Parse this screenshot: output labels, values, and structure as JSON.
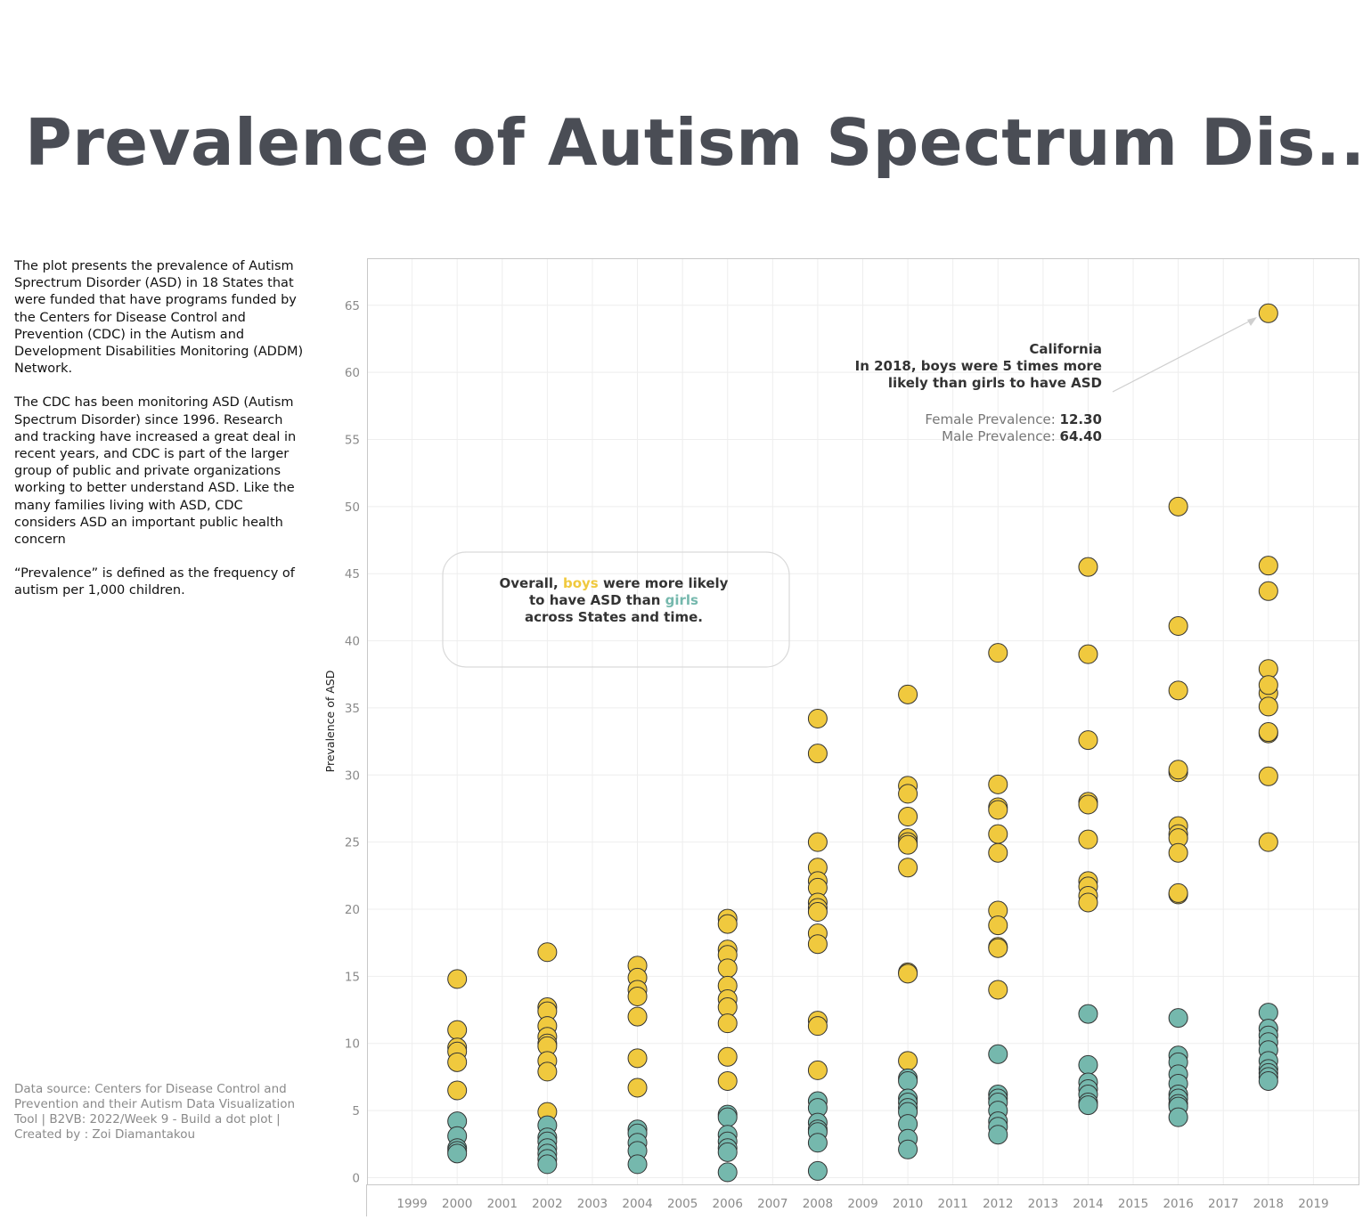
{
  "title": "Prevalence of Autism Spectrum Dis..",
  "description": [
    "The plot presents the prevalence of Autism Sprectrum Disorder (ASD)  in 18 States that were funded that have programs funded by the Centers for Disease Control and Prevention (CDC) in the Autism and Development Disabilities Monitoring (ADDM) Network.",
    "The CDC has been monitoring ASD (Autism Spectrum Disorder) since 1996. Research and tracking have increased a great deal in recent years, and CDC is part of the larger group of public and private organizations working to better understand ASD. Like the many families living with ASD, CDC considers ASD an important public health concern",
    "“Prevalence” is defined as the frequency of autism per 1,000 children."
  ],
  "source": "Data source: Centers for Disease Control and Prevention and their Autism Data Visualization Tool  | B2VB: 2022/Week 9 - Build a dot plot | Created by : Zoi Diamantakou",
  "annotation_ca": {
    "line1": "California",
    "line2": "In 2018, boys were 5 times more",
    "line3": "likely than girls to have ASD",
    "female_label": "Female Prevalence: ",
    "female_value": "12.30",
    "male_label": "Male Prevalence: ",
    "male_value": "64.40"
  },
  "annotation_overall": {
    "pre": "Overall, ",
    "boys": "boys",
    "mid": " were more likely",
    "line2a": "to have ASD than ",
    "girls": "girls",
    "line3": "across States and time."
  },
  "colors": {
    "boys": "#f0c93e",
    "girls": "#75b8ad",
    "title": "#4a4d55",
    "grid": "#eeeeee"
  },
  "chart_data": {
    "type": "scatter",
    "xlabel": "",
    "ylabel": "Prevalence of ASD",
    "xlim": [
      1998,
      2020
    ],
    "ylim": [
      -0.5,
      68.5
    ],
    "xticks": [
      1999,
      2000,
      2001,
      2002,
      2003,
      2004,
      2005,
      2006,
      2007,
      2008,
      2009,
      2010,
      2011,
      2012,
      2013,
      2014,
      2015,
      2016,
      2017,
      2018,
      2019
    ],
    "yticks": [
      0,
      5,
      10,
      15,
      20,
      25,
      30,
      35,
      40,
      45,
      50,
      55,
      60,
      65
    ],
    "grid": true,
    "series": [
      {
        "name": "boys",
        "points": [
          [
            2000,
            14.8
          ],
          [
            2000,
            11.0
          ],
          [
            2000,
            9.7
          ],
          [
            2000,
            9.4
          ],
          [
            2000,
            8.6
          ],
          [
            2000,
            6.5
          ],
          [
            2002,
            16.8
          ],
          [
            2002,
            12.7
          ],
          [
            2002,
            12.4
          ],
          [
            2002,
            11.3
          ],
          [
            2002,
            10.5
          ],
          [
            2002,
            10.0
          ],
          [
            2002,
            9.8
          ],
          [
            2002,
            8.7
          ],
          [
            2002,
            7.9
          ],
          [
            2002,
            4.9
          ],
          [
            2004,
            15.8
          ],
          [
            2004,
            14.9
          ],
          [
            2004,
            14.0
          ],
          [
            2004,
            13.5
          ],
          [
            2004,
            12.0
          ],
          [
            2004,
            8.9
          ],
          [
            2004,
            6.7
          ],
          [
            2006,
            19.3
          ],
          [
            2006,
            18.9
          ],
          [
            2006,
            17.0
          ],
          [
            2006,
            16.6
          ],
          [
            2006,
            15.6
          ],
          [
            2006,
            14.3
          ],
          [
            2006,
            13.3
          ],
          [
            2006,
            12.7
          ],
          [
            2006,
            11.5
          ],
          [
            2006,
            9.0
          ],
          [
            2006,
            7.2
          ],
          [
            2008,
            34.2
          ],
          [
            2008,
            31.6
          ],
          [
            2008,
            25.0
          ],
          [
            2008,
            23.1
          ],
          [
            2008,
            22.1
          ],
          [
            2008,
            21.6
          ],
          [
            2008,
            20.5
          ],
          [
            2008,
            20.1
          ],
          [
            2008,
            19.8
          ],
          [
            2008,
            18.2
          ],
          [
            2008,
            17.4
          ],
          [
            2008,
            11.7
          ],
          [
            2008,
            11.3
          ],
          [
            2008,
            8.0
          ],
          [
            2010,
            36.0
          ],
          [
            2010,
            29.2
          ],
          [
            2010,
            28.6
          ],
          [
            2010,
            26.9
          ],
          [
            2010,
            25.3
          ],
          [
            2010,
            25.0
          ],
          [
            2010,
            24.8
          ],
          [
            2010,
            23.1
          ],
          [
            2010,
            15.3
          ],
          [
            2010,
            15.2
          ],
          [
            2010,
            8.7
          ],
          [
            2012,
            39.1
          ],
          [
            2012,
            29.3
          ],
          [
            2012,
            27.6
          ],
          [
            2012,
            27.4
          ],
          [
            2012,
            25.6
          ],
          [
            2012,
            24.2
          ],
          [
            2012,
            19.9
          ],
          [
            2012,
            18.8
          ],
          [
            2012,
            17.2
          ],
          [
            2012,
            17.1
          ],
          [
            2012,
            14.0
          ],
          [
            2014,
            45.5
          ],
          [
            2014,
            39.0
          ],
          [
            2014,
            32.6
          ],
          [
            2014,
            28.0
          ],
          [
            2014,
            27.8
          ],
          [
            2014,
            25.2
          ],
          [
            2014,
            22.1
          ],
          [
            2014,
            21.7
          ],
          [
            2014,
            21.0
          ],
          [
            2014,
            20.5
          ],
          [
            2016,
            50.0
          ],
          [
            2016,
            41.1
          ],
          [
            2016,
            36.3
          ],
          [
            2016,
            30.2
          ],
          [
            2016,
            30.4
          ],
          [
            2016,
            26.2
          ],
          [
            2016,
            25.6
          ],
          [
            2016,
            25.3
          ],
          [
            2016,
            24.2
          ],
          [
            2016,
            21.1
          ],
          [
            2016,
            21.2
          ],
          [
            2018,
            64.4
          ],
          [
            2018,
            45.6
          ],
          [
            2018,
            43.7
          ],
          [
            2018,
            37.9
          ],
          [
            2018,
            36.1
          ],
          [
            2018,
            36.7
          ],
          [
            2018,
            35.1
          ],
          [
            2018,
            33.1
          ],
          [
            2018,
            33.2
          ],
          [
            2018,
            29.9
          ],
          [
            2018,
            25.0
          ]
        ]
      },
      {
        "name": "girls",
        "points": [
          [
            2000,
            4.2
          ],
          [
            2000,
            3.1
          ],
          [
            2000,
            2.2
          ],
          [
            2000,
            2.0
          ],
          [
            2000,
            1.8
          ],
          [
            2002,
            3.9
          ],
          [
            2002,
            3.0
          ],
          [
            2002,
            2.7
          ],
          [
            2002,
            2.2
          ],
          [
            2002,
            1.8
          ],
          [
            2002,
            1.4
          ],
          [
            2002,
            1.0
          ],
          [
            2004,
            3.6
          ],
          [
            2004,
            3.3
          ],
          [
            2004,
            2.6
          ],
          [
            2004,
            2.0
          ],
          [
            2004,
            1.0
          ],
          [
            2006,
            4.7
          ],
          [
            2006,
            4.5
          ],
          [
            2006,
            3.2
          ],
          [
            2006,
            2.7
          ],
          [
            2006,
            2.2
          ],
          [
            2006,
            1.9
          ],
          [
            2006,
            0.4
          ],
          [
            2008,
            5.7
          ],
          [
            2008,
            5.2
          ],
          [
            2008,
            4.1
          ],
          [
            2008,
            3.6
          ],
          [
            2008,
            3.4
          ],
          [
            2008,
            2.6
          ],
          [
            2008,
            0.5
          ],
          [
            2010,
            7.4
          ],
          [
            2010,
            7.2
          ],
          [
            2010,
            5.9
          ],
          [
            2010,
            5.6
          ],
          [
            2010,
            5.2
          ],
          [
            2010,
            4.9
          ],
          [
            2010,
            4.0
          ],
          [
            2010,
            2.9
          ],
          [
            2010,
            2.1
          ],
          [
            2012,
            9.2
          ],
          [
            2012,
            6.2
          ],
          [
            2012,
            5.9
          ],
          [
            2012,
            5.6
          ],
          [
            2012,
            5.0
          ],
          [
            2012,
            4.2
          ],
          [
            2012,
            3.8
          ],
          [
            2012,
            3.2
          ],
          [
            2014,
            12.2
          ],
          [
            2014,
            8.4
          ],
          [
            2014,
            7.1
          ],
          [
            2014,
            6.6
          ],
          [
            2014,
            6.2
          ],
          [
            2014,
            5.6
          ],
          [
            2014,
            5.4
          ],
          [
            2016,
            11.9
          ],
          [
            2016,
            9.1
          ],
          [
            2016,
            8.6
          ],
          [
            2016,
            7.7
          ],
          [
            2016,
            7.0
          ],
          [
            2016,
            6.2
          ],
          [
            2016,
            5.9
          ],
          [
            2016,
            5.5
          ],
          [
            2016,
            5.3
          ],
          [
            2016,
            4.5
          ],
          [
            2018,
            12.3
          ],
          [
            2018,
            11.1
          ],
          [
            2018,
            10.6
          ],
          [
            2018,
            10.1
          ],
          [
            2018,
            9.5
          ],
          [
            2018,
            8.7
          ],
          [
            2018,
            8.1
          ],
          [
            2018,
            7.8
          ],
          [
            2018,
            7.5
          ],
          [
            2018,
            7.2
          ]
        ]
      }
    ]
  }
}
